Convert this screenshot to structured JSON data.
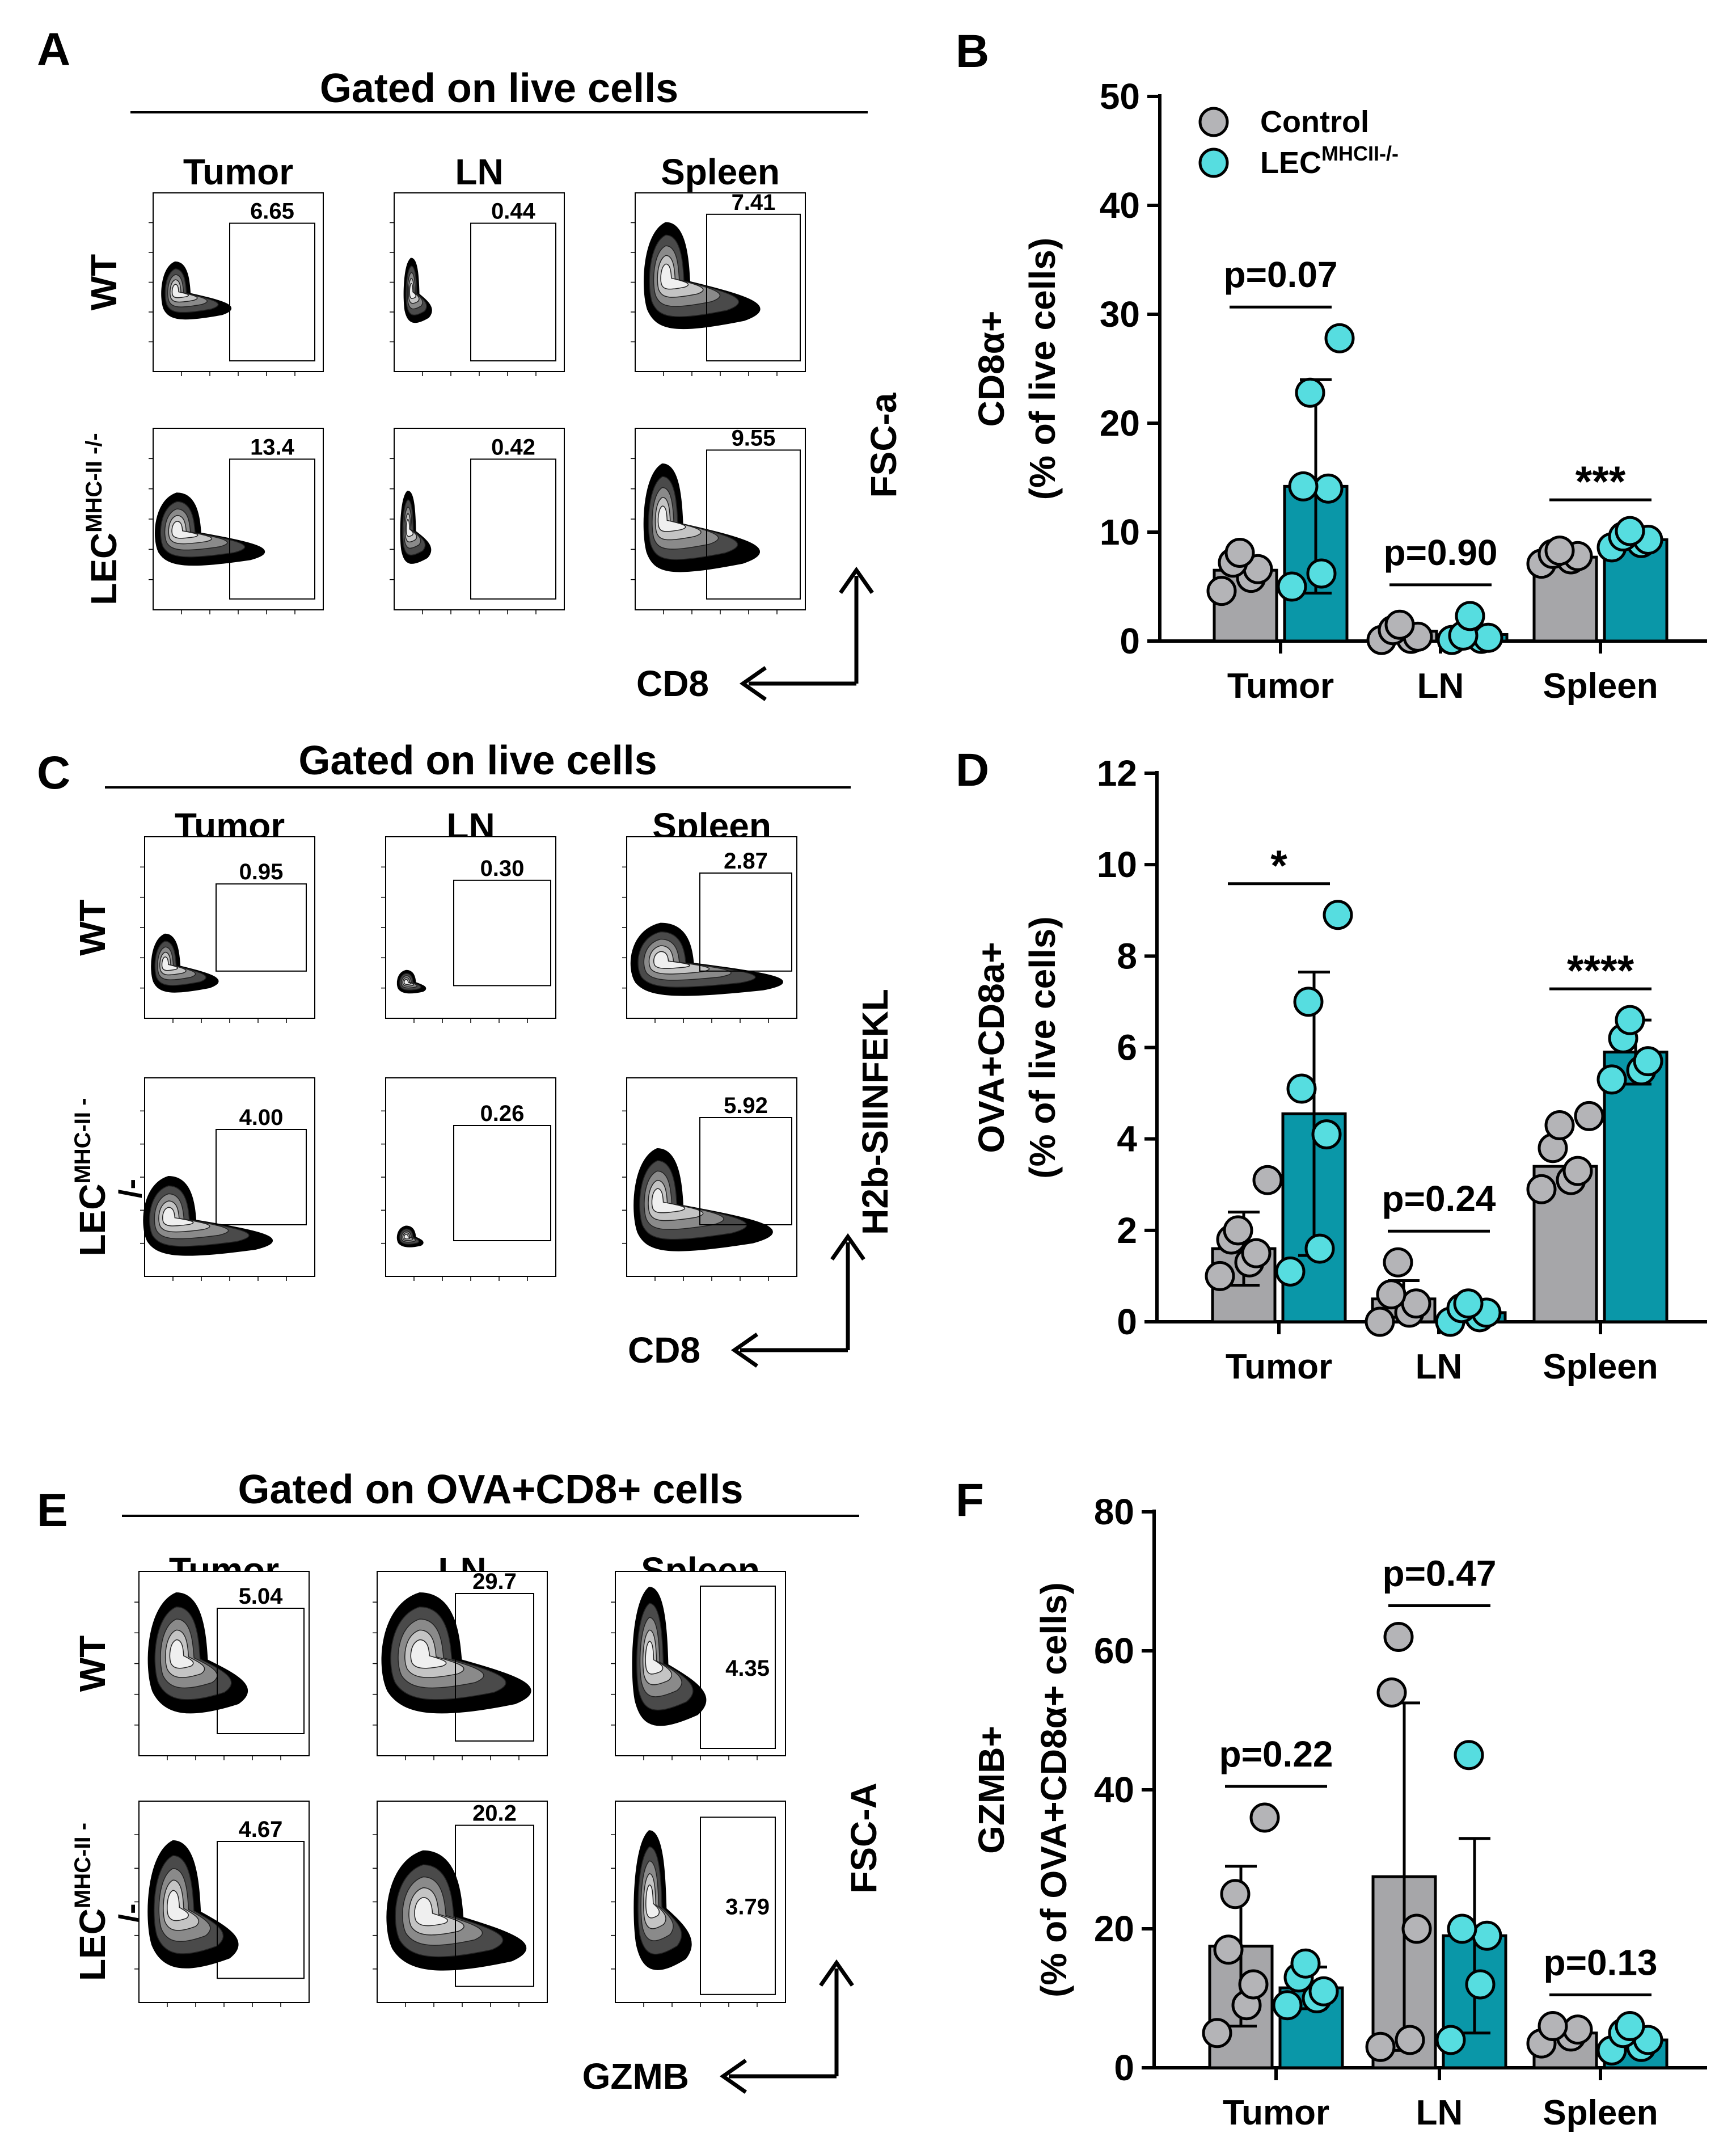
{
  "colors": {
    "control_fill": "#b4b4b7",
    "control_bar": "#a6a6a9",
    "lec_fill": "#56dde0",
    "lec_bar": "#0a97a8",
    "ink": "#000000"
  },
  "groups": [
    "Tumor",
    "LN",
    "Spleen"
  ],
  "panels": {
    "A": {
      "letter": "A",
      "gate_title": "Gated on live cells",
      "columns": [
        "Tumor",
        "LN",
        "Spleen"
      ],
      "rows": [
        {
          "label_main": "WT",
          "label_sup": ""
        },
        {
          "label_main": "LEC",
          "label_sup": "MHC-II -/-",
          "label_wrap": ""
        }
      ],
      "gates": [
        [
          "6.65",
          "0.44",
          "7.41"
        ],
        [
          "13.4",
          "0.42",
          "9.55"
        ]
      ],
      "x_axis": "CD8",
      "y_axis": "FSC-a"
    },
    "C": {
      "letter": "C",
      "gate_title": "Gated on live cells",
      "columns": [
        "Tumor",
        "LN",
        "Spleen"
      ],
      "rows": [
        {
          "label_main": "WT",
          "label_sup": ""
        },
        {
          "label_main": "LEC",
          "label_sup": "MHC-II -",
          "label_wrap": "/-"
        }
      ],
      "gates": [
        [
          "0.95",
          "0.30",
          "2.87"
        ],
        [
          "4.00",
          "0.26",
          "5.92"
        ]
      ],
      "x_axis": "CD8",
      "y_axis": "H2b-SIINFEKL"
    },
    "E": {
      "letter": "E",
      "gate_title": "Gated on OVA+CD8+ cells",
      "columns": [
        "Tumor",
        "LN",
        "Spleen"
      ],
      "rows": [
        {
          "label_main": "WT",
          "label_sup": ""
        },
        {
          "label_main": "LEC",
          "label_sup": "MHC-II -",
          "label_wrap": "/-"
        }
      ],
      "gates": [
        [
          "5.04",
          "29.7",
          "4.35"
        ],
        [
          "4.67",
          "20.2",
          "3.79"
        ]
      ],
      "x_axis": "GZMB",
      "y_axis": "FSC-A"
    }
  },
  "chart_data": [
    {
      "panel": "B",
      "type": "bar",
      "categories": [
        "Tumor",
        "LN",
        "Spleen"
      ],
      "ylabel_line1": "CD8α+",
      "ylabel_line2": "(% of live cells)",
      "ylim": [
        0,
        50
      ],
      "yticks": [
        "0",
        "10",
        "20",
        "30",
        "40",
        "50"
      ],
      "legend": {
        "position": "top-left",
        "entries": [
          {
            "text": "Control",
            "sup": ""
          },
          {
            "text": "LEC",
            "sup": "MHCII-/-"
          }
        ]
      },
      "series": [
        {
          "name": "Control",
          "means": [
            6.5,
            0.9,
            7.7
          ],
          "sd": [
            null,
            null,
            null
          ],
          "points": [
            [
              4.6,
              5.8,
              6.6,
              7.2,
              8.1
            ],
            [
              0.1,
              0.2,
              0.4,
              1.0,
              1.5
            ],
            [
              7.1,
              7.5,
              7.8,
              8.0,
              8.3
            ]
          ]
        },
        {
          "name": "LEC",
          "means": [
            14.2,
            0.6,
            9.3
          ],
          "sd": [
            9.8,
            null,
            null
          ],
          "points": [
            [
              5.0,
              6.2,
              14.0,
              14.2,
              22.8,
              27.8
            ],
            [
              0.1,
              0.2,
              0.3,
              0.5,
              2.3
            ],
            [
              8.6,
              9.0,
              9.3,
              9.6,
              10.1
            ]
          ]
        }
      ],
      "annotations": [
        "p=0.07",
        "p=0.90",
        "***"
      ]
    },
    {
      "panel": "D",
      "type": "bar",
      "categories": [
        "Tumor",
        "LN",
        "Spleen"
      ],
      "ylabel_line1": "OVA+CD8a+",
      "ylabel_line2": "(% of live cells)",
      "ylim": [
        0,
        12
      ],
      "yticks": [
        "0",
        "2",
        "4",
        "6",
        "8",
        "10",
        "12"
      ],
      "series": [
        {
          "name": "Control",
          "means": [
            1.6,
            0.5,
            3.4
          ],
          "sd": [
            0.8,
            0.4,
            null
          ],
          "points": [
            [
              1.0,
              1.3,
              1.5,
              1.8,
              2.0,
              3.1
            ],
            [
              0.0,
              0.2,
              0.4,
              0.6,
              1.3
            ],
            [
              2.9,
              3.1,
              3.3,
              3.8,
              4.3,
              4.5
            ]
          ]
        },
        {
          "name": "LEC",
          "means": [
            4.55,
            0.2,
            5.9
          ],
          "sd": [
            3.1,
            null,
            0.7
          ],
          "points": [
            [
              1.1,
              1.6,
              4.1,
              5.1,
              7.0,
              8.9
            ],
            [
              0.0,
              0.1,
              0.2,
              0.3,
              0.4
            ],
            [
              5.3,
              5.5,
              5.7,
              6.2,
              6.6
            ]
          ]
        }
      ],
      "annotations": [
        "*",
        "p=0.24",
        "****"
      ]
    },
    {
      "panel": "F",
      "type": "bar",
      "categories": [
        "Tumor",
        "LN",
        "Spleen"
      ],
      "ylabel_line1": "GZMB+",
      "ylabel_line2": "(% of  OVA+CD8α+ cells)",
      "ylim": [
        0,
        80
      ],
      "yticks": [
        "0",
        "20",
        "40",
        "60",
        "80"
      ],
      "series": [
        {
          "name": "Control",
          "means": [
            17.5,
            27.5,
            5.0
          ],
          "sd": [
            11.5,
            25.0,
            null
          ],
          "points": [
            [
              5.0,
              9.0,
              12.0,
              17.0,
              25.0,
              36.0
            ],
            [
              3.0,
              4.0,
              20.0,
              54.0,
              62.0
            ],
            [
              3.5,
              4.5,
              5.5,
              6.0
            ]
          ]
        },
        {
          "name": "LEC",
          "means": [
            11.5,
            19.0,
            4.0
          ],
          "sd": [
            3.0,
            14.0,
            null
          ],
          "points": [
            [
              9.0,
              10.0,
              11.0,
              13.0,
              15.0
            ],
            [
              4.0,
              12.0,
              19.0,
              20.0,
              45.0
            ],
            [
              2.5,
              3.0,
              4.0,
              5.0,
              6.0
            ]
          ]
        }
      ],
      "annotations": [
        "p=0.22",
        "p=0.47",
        "p=0.13"
      ]
    }
  ]
}
